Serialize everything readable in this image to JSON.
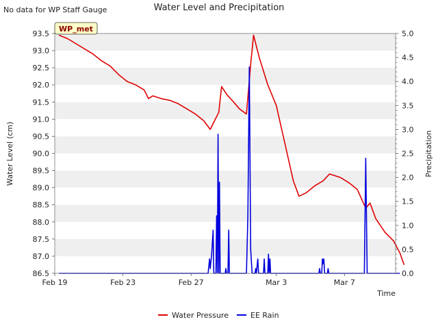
{
  "note": "No data for WP Staff Gauge",
  "badge": "WP_met",
  "chart_data": {
    "type": "line",
    "title": "Water Level and Precipitation",
    "xlabel": "Time",
    "ylabel_left": "Water Level (cm)",
    "ylabel_right": "Precipitation",
    "xlim": [
      "2024-02-19",
      "2024-03-10"
    ],
    "x_ticks": [
      {
        "date": "2024-02-19",
        "label": "Feb 19"
      },
      {
        "date": "2024-02-23",
        "label": "Feb 23"
      },
      {
        "date": "2024-02-27",
        "label": "Feb 27"
      },
      {
        "date": "2024-03-03",
        "label": "Mar 3"
      },
      {
        "date": "2024-03-07",
        "label": "Mar 7"
      }
    ],
    "ylim_left": [
      86.5,
      93.5
    ],
    "yticks_left": [
      "86.5",
      "87.0",
      "87.5",
      "88.0",
      "88.5",
      "89.0",
      "89.5",
      "90.0",
      "90.5",
      "91.0",
      "91.5",
      "92.0",
      "92.5",
      "93.0",
      "93.5"
    ],
    "ylim_right": [
      0.0,
      5.0
    ],
    "yticks_right": [
      "0.0",
      "0.5",
      "1.0",
      "1.5",
      "2.0",
      "2.5",
      "3.0",
      "3.5",
      "4.0",
      "4.5",
      "5.0"
    ],
    "grid": "horizontal bands",
    "legend_position": "bottom",
    "series": [
      {
        "name": "Water Pressure",
        "color": "#e00000",
        "axis": "left",
        "points": [
          [
            "2024-02-19 06:00",
            93.45
          ],
          [
            "2024-02-19 18:00",
            93.35
          ],
          [
            "2024-02-20 06:00",
            93.2
          ],
          [
            "2024-02-20 18:00",
            93.05
          ],
          [
            "2024-02-21 06:00",
            92.9
          ],
          [
            "2024-02-21 18:00",
            92.7
          ],
          [
            "2024-02-22 06:00",
            92.55
          ],
          [
            "2024-02-22 18:00",
            92.3
          ],
          [
            "2024-02-23 06:00",
            92.1
          ],
          [
            "2024-02-23 18:00",
            92.0
          ],
          [
            "2024-02-24 06:00",
            91.85
          ],
          [
            "2024-02-24 12:00",
            91.6
          ],
          [
            "2024-02-24 18:00",
            91.68
          ],
          [
            "2024-02-25 06:00",
            91.6
          ],
          [
            "2024-02-25 18:00",
            91.55
          ],
          [
            "2024-02-26 06:00",
            91.45
          ],
          [
            "2024-02-26 18:00",
            91.3
          ],
          [
            "2024-02-27 06:00",
            91.15
          ],
          [
            "2024-02-27 18:00",
            90.95
          ],
          [
            "2024-02-28 03:00",
            90.7
          ],
          [
            "2024-02-28 09:00",
            90.95
          ],
          [
            "2024-02-28 15:00",
            91.2
          ],
          [
            "2024-02-28 19:00",
            91.95
          ],
          [
            "2024-02-29 03:00",
            91.7
          ],
          [
            "2024-02-29 12:00",
            91.5
          ],
          [
            "2024-02-29 20:00",
            91.3
          ],
          [
            "2024-03-01 06:00",
            91.15
          ],
          [
            "2024-03-01 12:00",
            92.6
          ],
          [
            "2024-03-01 16:00",
            93.45
          ],
          [
            "2024-03-02 00:00",
            92.8
          ],
          [
            "2024-03-02 12:00",
            92.0
          ],
          [
            "2024-03-03 00:00",
            91.4
          ],
          [
            "2024-03-03 12:00",
            90.3
          ],
          [
            "2024-03-04 00:00",
            89.2
          ],
          [
            "2024-03-04 08:00",
            88.75
          ],
          [
            "2024-03-04 18:00",
            88.85
          ],
          [
            "2024-03-05 06:00",
            89.05
          ],
          [
            "2024-03-05 18:00",
            89.2
          ],
          [
            "2024-03-06 03:00",
            89.4
          ],
          [
            "2024-03-06 18:00",
            89.3
          ],
          [
            "2024-03-07 06:00",
            89.15
          ],
          [
            "2024-03-07 18:00",
            88.95
          ],
          [
            "2024-03-08 06:00",
            88.4
          ],
          [
            "2024-03-08 12:00",
            88.55
          ],
          [
            "2024-03-08 20:00",
            88.1
          ],
          [
            "2024-03-09 09:00",
            87.7
          ],
          [
            "2024-03-09 21:00",
            87.45
          ],
          [
            "2024-03-10 06:00",
            87.1
          ],
          [
            "2024-03-10 12:00",
            86.75
          ]
        ]
      },
      {
        "name": "EE Rain",
        "color": "#0000dd",
        "axis": "right",
        "points": [
          [
            "2024-02-19 06:00",
            0.0
          ],
          [
            "2024-02-28 00:00",
            0.0
          ],
          [
            "2024-02-28 02:00",
            0.3
          ],
          [
            "2024-02-28 03:00",
            0.1
          ],
          [
            "2024-02-28 05:00",
            0.4
          ],
          [
            "2024-02-28 07:00",
            0.9
          ],
          [
            "2024-02-28 08:00",
            0.0
          ],
          [
            "2024-02-28 11:00",
            0.0
          ],
          [
            "2024-02-28 12:00",
            1.2
          ],
          [
            "2024-02-28 13:00",
            0.0
          ],
          [
            "2024-02-28 14:00",
            2.9
          ],
          [
            "2024-02-28 15:00",
            0.0
          ],
          [
            "2024-02-28 16:00",
            1.9
          ],
          [
            "2024-02-28 17:00",
            0.0
          ],
          [
            "2024-02-29 00:00",
            0.0
          ],
          [
            "2024-02-29 01:00",
            0.1
          ],
          [
            "2024-02-29 02:00",
            0.0
          ],
          [
            "2024-02-29 04:00",
            0.0
          ],
          [
            "2024-02-29 05:00",
            0.9
          ],
          [
            "2024-02-29 06:00",
            0.0
          ],
          [
            "2024-03-01 06:00",
            0.0
          ],
          [
            "2024-03-01 08:00",
            1.2
          ],
          [
            "2024-03-01 10:00",
            4.3
          ],
          [
            "2024-03-01 12:00",
            0.5
          ],
          [
            "2024-03-01 14:00",
            0.0
          ],
          [
            "2024-03-01 18:00",
            0.0
          ],
          [
            "2024-03-01 19:00",
            0.1
          ],
          [
            "2024-03-01 20:00",
            0.0
          ],
          [
            "2024-03-01 22:00",
            0.3
          ],
          [
            "2024-03-01 23:00",
            0.0
          ],
          [
            "2024-03-02 06:00",
            0.0
          ],
          [
            "2024-03-02 07:00",
            0.3
          ],
          [
            "2024-03-02 08:00",
            0.0
          ],
          [
            "2024-03-02 12:00",
            0.0
          ],
          [
            "2024-03-02 13:00",
            0.4
          ],
          [
            "2024-03-02 14:00",
            0.0
          ],
          [
            "2024-03-02 15:00",
            0.3
          ],
          [
            "2024-03-02 16:00",
            0.0
          ],
          [
            "2024-03-05 12:00",
            0.0
          ],
          [
            "2024-03-05 13:00",
            0.1
          ],
          [
            "2024-03-05 14:00",
            0.0
          ],
          [
            "2024-03-05 16:00",
            0.0
          ],
          [
            "2024-03-05 17:00",
            0.3
          ],
          [
            "2024-03-05 18:00",
            0.2
          ],
          [
            "2024-03-05 19:00",
            0.3
          ],
          [
            "2024-03-05 20:00",
            0.0
          ],
          [
            "2024-03-06 00:00",
            0.0
          ],
          [
            "2024-03-06 01:00",
            0.1
          ],
          [
            "2024-03-06 02:00",
            0.0
          ],
          [
            "2024-03-08 04:00",
            0.0
          ],
          [
            "2024-03-08 06:00",
            2.4
          ],
          [
            "2024-03-08 08:00",
            0.0
          ],
          [
            "2024-03-10 06:00",
            0.0
          ]
        ]
      }
    ]
  }
}
